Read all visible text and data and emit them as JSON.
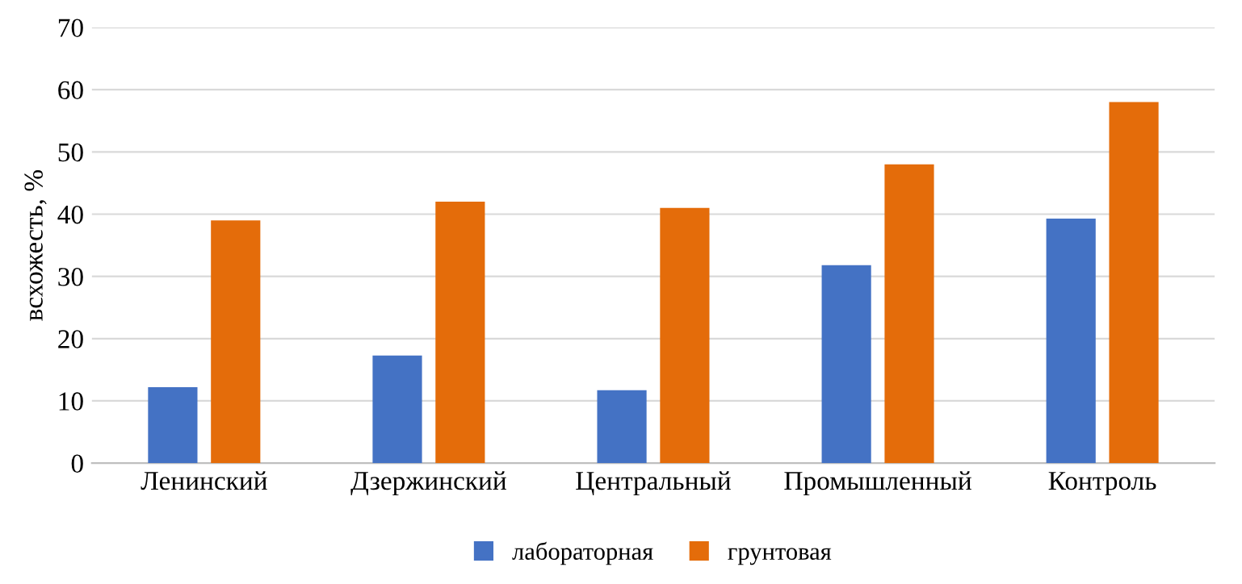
{
  "chart_data": {
    "type": "bar",
    "ylabel": "всхожесть, %",
    "categories": [
      "Ленинский",
      "Дзержинский",
      "Центральный",
      "Промышленный",
      "Контроль"
    ],
    "series": [
      {
        "name": "лабораторная",
        "color": "#4472c4",
        "values": [
          12.2,
          17.3,
          11.7,
          31.8,
          39.3
        ]
      },
      {
        "name": "грунтовая",
        "color": "#e46c0a",
        "values": [
          39,
          42,
          41,
          48,
          58
        ]
      }
    ],
    "ylim": [
      0,
      70
    ],
    "yticks": [
      0,
      10,
      20,
      30,
      40,
      50,
      60,
      70
    ],
    "grid": "y",
    "legend": "bottom"
  }
}
